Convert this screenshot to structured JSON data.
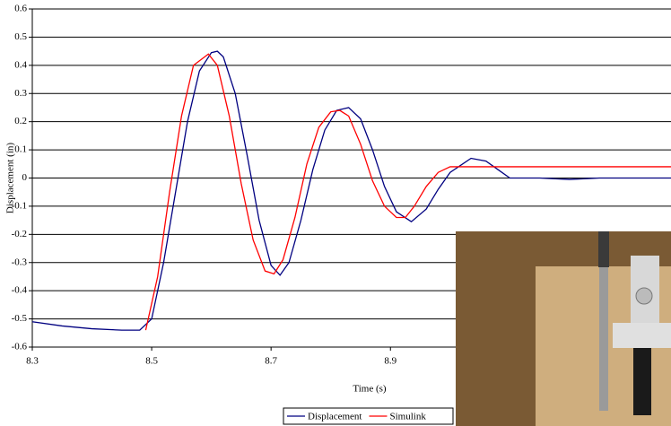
{
  "chart_data": {
    "type": "line",
    "x_label": "Time (s)",
    "y_label": "Displacement (in)",
    "xlim": [
      8.3,
      9.37
    ],
    "xticks": [
      8.3,
      8.5,
      8.7,
      8.9
    ],
    "ylim": [
      -0.6,
      0.6
    ],
    "yticks": [
      -0.6,
      -0.5,
      -0.4,
      -0.3,
      -0.2,
      -0.1,
      0,
      0.1,
      0.2,
      0.3,
      0.4,
      0.5,
      0.6
    ],
    "grid": true,
    "legend": "bottom",
    "series": [
      {
        "name": "Displacement",
        "color": "#000080",
        "x": [
          8.3,
          8.35,
          8.4,
          8.45,
          8.48,
          8.5,
          8.52,
          8.54,
          8.56,
          8.58,
          8.6,
          8.61,
          8.62,
          8.64,
          8.66,
          8.68,
          8.7,
          8.715,
          8.73,
          8.75,
          8.77,
          8.79,
          8.81,
          8.83,
          8.85,
          8.87,
          8.89,
          8.91,
          8.935,
          8.96,
          8.98,
          9.0,
          9.035,
          9.06,
          9.08,
          9.1,
          9.15,
          9.2,
          9.25,
          9.3,
          9.37
        ],
        "values": [
          -0.51,
          -0.525,
          -0.535,
          -0.54,
          -0.54,
          -0.5,
          -0.3,
          -0.05,
          0.2,
          0.38,
          0.445,
          0.45,
          0.43,
          0.3,
          0.08,
          -0.15,
          -0.31,
          -0.345,
          -0.3,
          -0.15,
          0.03,
          0.17,
          0.24,
          0.25,
          0.21,
          0.1,
          -0.03,
          -0.12,
          -0.155,
          -0.11,
          -0.04,
          0.02,
          0.07,
          0.06,
          0.03,
          0.0,
          0.0,
          -0.005,
          0.0,
          0.0,
          0.0
        ]
      },
      {
        "name": "Simulink",
        "color": "#ff0000",
        "x": [
          8.49,
          8.51,
          8.53,
          8.55,
          8.57,
          8.595,
          8.61,
          8.63,
          8.65,
          8.67,
          8.69,
          8.705,
          8.72,
          8.74,
          8.76,
          8.78,
          8.8,
          8.815,
          8.83,
          8.85,
          8.87,
          8.89,
          8.91,
          8.925,
          8.94,
          8.96,
          8.98,
          9.0,
          9.02,
          9.1,
          9.2,
          9.37
        ],
        "values": [
          -0.54,
          -0.35,
          -0.05,
          0.22,
          0.4,
          0.44,
          0.4,
          0.22,
          -0.02,
          -0.22,
          -0.33,
          -0.34,
          -0.29,
          -0.14,
          0.05,
          0.18,
          0.235,
          0.24,
          0.22,
          0.12,
          -0.01,
          -0.1,
          -0.14,
          -0.14,
          -0.1,
          -0.03,
          0.02,
          0.04,
          0.04,
          0.04,
          0.04,
          0.04
        ]
      }
    ]
  }
}
